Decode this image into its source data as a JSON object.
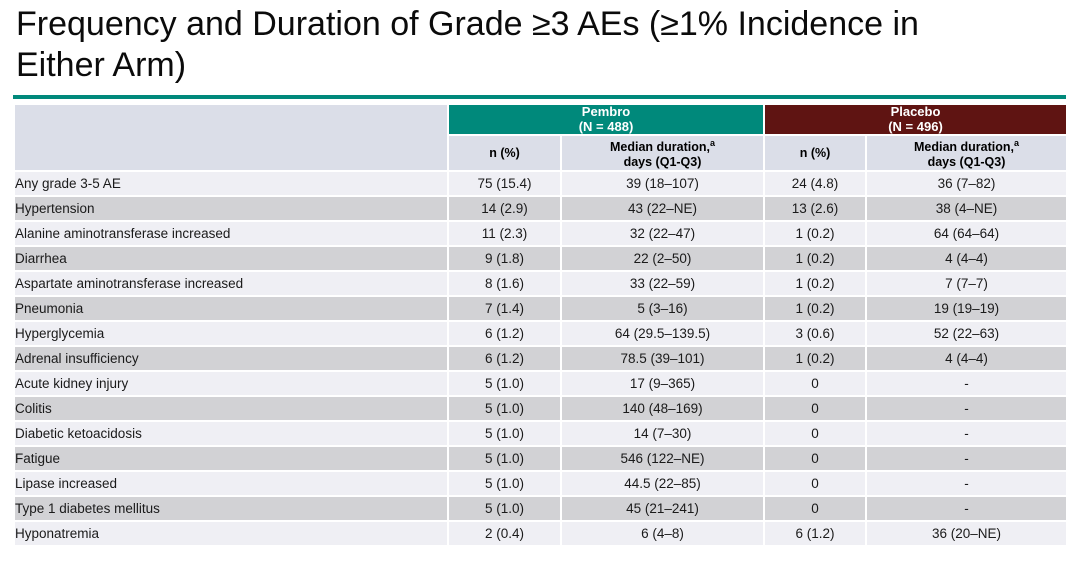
{
  "slide": {
    "title_line1": "Frequency and Duration of Grade ≥3 AEs (≥1% Incidence in",
    "title_line2": "Either Arm)"
  },
  "colors": {
    "pembro_header": "#00897B",
    "placebo_header": "#5F1412",
    "title_rule": "#00897B",
    "subheader_bg": "#DBDEE8",
    "row_light": "#EFEFF4",
    "row_dark": "#D2D2D5"
  },
  "table": {
    "groups": [
      {
        "name": "Pembro",
        "n": "(N = 488)"
      },
      {
        "name": "Placebo",
        "n": "(N = 496)"
      }
    ],
    "subheaders": {
      "n_label": "n (%)",
      "duration_label": "Median duration,",
      "duration_sup": "a",
      "duration_label2": "days (Q1-Q3)"
    },
    "rows": [
      {
        "ae": "Any grade 3-5 AE",
        "pembro_n": "75 (15.4)",
        "pembro_dur": "39 (18–107)",
        "placebo_n": "24 (4.8)",
        "placebo_dur": "36 (7–82)"
      },
      {
        "ae": "Hypertension",
        "pembro_n": "14 (2.9)",
        "pembro_dur": "43 (22–NE)",
        "placebo_n": "13 (2.6)",
        "placebo_dur": "38 (4–NE)"
      },
      {
        "ae": "Alanine aminotransferase increased",
        "pembro_n": "11 (2.3)",
        "pembro_dur": "32 (22–47)",
        "placebo_n": "1 (0.2)",
        "placebo_dur": "64 (64–64)"
      },
      {
        "ae": "Diarrhea",
        "pembro_n": "9 (1.8)",
        "pembro_dur": "22 (2–50)",
        "placebo_n": "1 (0.2)",
        "placebo_dur": "4 (4–4)"
      },
      {
        "ae": "Aspartate aminotransferase increased",
        "pembro_n": "8 (1.6)",
        "pembro_dur": "33 (22–59)",
        "placebo_n": "1 (0.2)",
        "placebo_dur": "7 (7–7)"
      },
      {
        "ae": "Pneumonia",
        "pembro_n": "7 (1.4)",
        "pembro_dur": "5 (3–16)",
        "placebo_n": "1 (0.2)",
        "placebo_dur": "19 (19–19)"
      },
      {
        "ae": "Hyperglycemia",
        "pembro_n": "6 (1.2)",
        "pembro_dur": "64 (29.5–139.5)",
        "placebo_n": "3 (0.6)",
        "placebo_dur": "52 (22–63)"
      },
      {
        "ae": "Adrenal insufficiency",
        "pembro_n": "6 (1.2)",
        "pembro_dur": "78.5 (39–101)",
        "placebo_n": "1 (0.2)",
        "placebo_dur": "4 (4–4)"
      },
      {
        "ae": "Acute kidney injury",
        "pembro_n": "5 (1.0)",
        "pembro_dur": "17 (9–365)",
        "placebo_n": "0",
        "placebo_dur": "-"
      },
      {
        "ae": "Colitis",
        "pembro_n": "5 (1.0)",
        "pembro_dur": "140 (48–169)",
        "placebo_n": "0",
        "placebo_dur": "-"
      },
      {
        "ae": "Diabetic ketoacidosis",
        "pembro_n": "5 (1.0)",
        "pembro_dur": "14 (7–30)",
        "placebo_n": "0",
        "placebo_dur": "-"
      },
      {
        "ae": "Fatigue",
        "pembro_n": "5 (1.0)",
        "pembro_dur": "546 (122–NE)",
        "placebo_n": "0",
        "placebo_dur": "-"
      },
      {
        "ae": "Lipase increased",
        "pembro_n": "5 (1.0)",
        "pembro_dur": "44.5 (22–85)",
        "placebo_n": "0",
        "placebo_dur": "-"
      },
      {
        "ae": "Type 1 diabetes mellitus",
        "pembro_n": "5 (1.0)",
        "pembro_dur": "45 (21–241)",
        "placebo_n": "0",
        "placebo_dur": "-"
      },
      {
        "ae": "Hyponatremia",
        "pembro_n": "2 (0.4)",
        "pembro_dur": "6 (4–8)",
        "placebo_n": "6 (1.2)",
        "placebo_dur": "36 (20–NE)"
      }
    ]
  }
}
